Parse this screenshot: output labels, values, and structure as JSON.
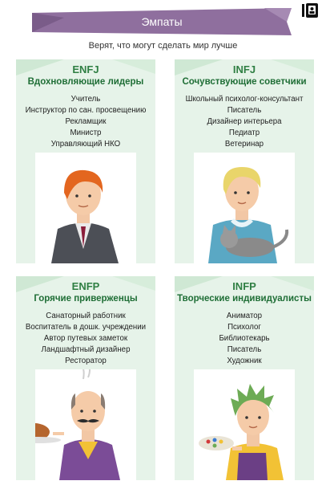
{
  "header": {
    "title": "Эмпаты",
    "subtitle": "Верят, что могут сделать мир лучше"
  },
  "cards": [
    {
      "type": "ENFJ",
      "role": "Вдохновляющие лидеры",
      "jobs": [
        "Учитель",
        "Инструктор по сан. просвещению",
        "Рекламщик",
        "Министр",
        "Управляющий НКО"
      ]
    },
    {
      "type": "INFJ",
      "role": "Сочувствующие советчики",
      "jobs": [
        "Школьный психолог-консультант",
        "Писатель",
        "Дизайнер интерьера",
        "Педиатр",
        "Ветеринар"
      ]
    },
    {
      "type": "ENFP",
      "role": "Горячие приверженцы",
      "jobs": [
        "Санаторный работник",
        "Воспитатель в дошк. учреждении",
        "Автор путевых заметок",
        "Ландшафтный дизайнер",
        "Ресторатор"
      ]
    },
    {
      "type": "INFP",
      "role": "Творческие индивидуалисты",
      "jobs": [
        "Аниматор",
        "Психолог",
        "Библиотекарь",
        "Писатель",
        "Художник"
      ]
    }
  ],
  "colors": {
    "banner": "#8f6f9e",
    "card_bg": "#e6f3e9",
    "accent_green": "#2f7f43"
  }
}
